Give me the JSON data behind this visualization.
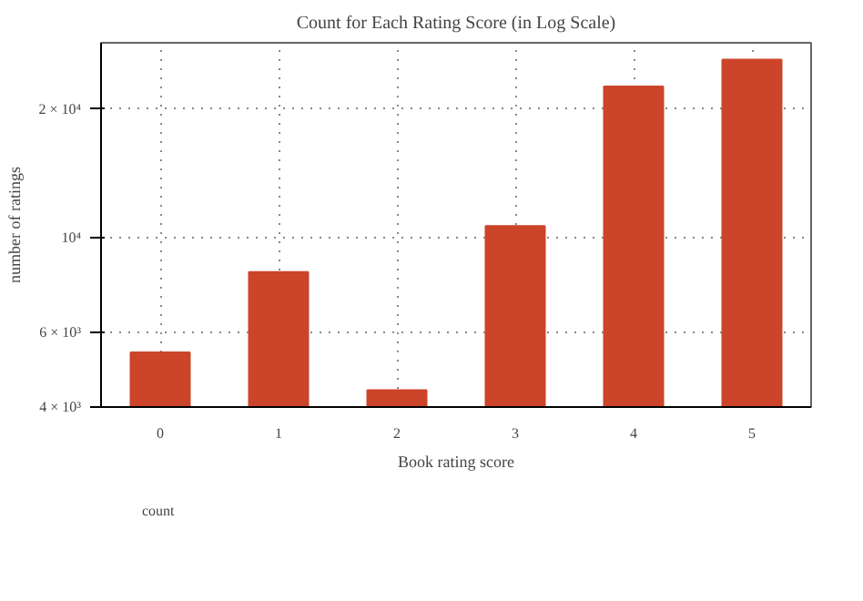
{
  "chart_data": {
    "type": "bar",
    "title": "Count for Each Rating Score (in Log Scale)",
    "xlabel": "Book rating score",
    "ylabel": "number of ratings",
    "categories": [
      "0",
      "1",
      "2",
      "3",
      "4",
      "5"
    ],
    "series": [
      {
        "name": "count",
        "color": "#cc4429",
        "values": [
          5370,
          8290,
          4380,
          10630,
          22600,
          26100
        ]
      }
    ],
    "log": "y",
    "ylim": [
      4000,
      28600
    ],
    "yticks": [
      {
        "value": 4000,
        "label": "4 × 10³"
      },
      {
        "value": 6000,
        "label": "6 × 10³"
      },
      {
        "value": 10000,
        "label": "10⁴"
      },
      {
        "value": 20000,
        "label": "2 × 10⁴"
      }
    ],
    "grid": true,
    "legend": "bottom left"
  }
}
